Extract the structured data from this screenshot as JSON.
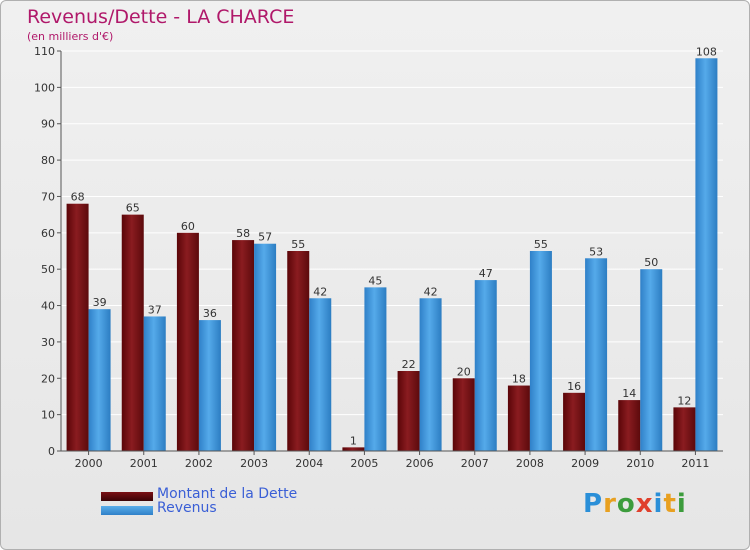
{
  "title": "Revenus/Dette - LA CHARCE",
  "subtitle": "(en milliers d'€)",
  "logo": {
    "letters": [
      "P",
      "r",
      "o",
      "x",
      "i",
      "t",
      "i"
    ],
    "colors": [
      "#2a8fd8",
      "#e8a020",
      "#3c9c3c",
      "#e0402c",
      "#2a8fd8",
      "#e8a020",
      "#3c9c3c"
    ]
  },
  "colors": {
    "dette": "#7a1014",
    "revenus": "#3f98de",
    "title": "#b0186a",
    "legend_text": "#3a5fd6"
  },
  "chart_data": {
    "type": "bar",
    "categories": [
      "2000",
      "2001",
      "2002",
      "2003",
      "2004",
      "2005",
      "2006",
      "2007",
      "2008",
      "2009",
      "2010",
      "2011"
    ],
    "series": [
      {
        "name": "Montant de la Dette",
        "values": [
          68,
          65,
          60,
          58,
          55,
          1,
          22,
          20,
          18,
          16,
          14,
          12
        ]
      },
      {
        "name": "Revenus",
        "values": [
          39,
          37,
          36,
          57,
          42,
          45,
          42,
          47,
          55,
          53,
          50,
          108
        ]
      }
    ],
    "ylim": [
      0,
      110
    ],
    "yticks": [
      0,
      10,
      20,
      30,
      40,
      50,
      60,
      70,
      80,
      90,
      100,
      110
    ],
    "grid": true,
    "legend_placement": "bottom-left"
  }
}
